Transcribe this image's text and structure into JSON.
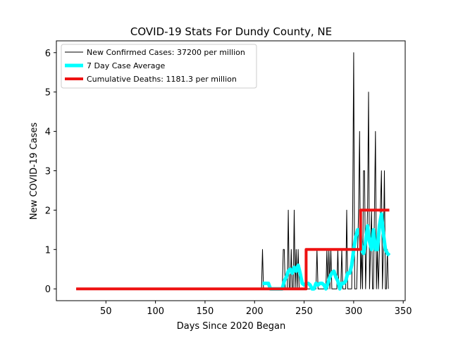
{
  "chart_data": {
    "type": "line",
    "title": "COVID-19 Stats For Dundy County, NE",
    "xlabel": "Days Since 2020 Began",
    "ylabel": "New COVID-19 Cases",
    "xlim": [
      0,
      352
    ],
    "ylim": [
      -0.3,
      6.3
    ],
    "xticks": [
      50,
      100,
      150,
      200,
      250,
      300,
      350
    ],
    "yticks": [
      0,
      1,
      2,
      3,
      4,
      5,
      6
    ],
    "grid": false,
    "legend_position": "top-left",
    "series": [
      {
        "name": "New Confirmed Cases: 37200 per million",
        "color": "#000000",
        "x": [
          20,
          200,
          206,
          207,
          208,
          209,
          210,
          211,
          212,
          213,
          214,
          215,
          216,
          217,
          218,
          219,
          220,
          221,
          222,
          223,
          224,
          225,
          226,
          227,
          228,
          229,
          230,
          231,
          232,
          233,
          234,
          235,
          236,
          237,
          238,
          239,
          240,
          241,
          242,
          243,
          244,
          245,
          246,
          247,
          248,
          249,
          250,
          251,
          252,
          253,
          254,
          255,
          256,
          257,
          258,
          259,
          260,
          261,
          262,
          263,
          264,
          265,
          266,
          267,
          268,
          269,
          270,
          271,
          272,
          273,
          274,
          275,
          276,
          277,
          278,
          279,
          280,
          281,
          282,
          283,
          284,
          285,
          286,
          287,
          288,
          289,
          290,
          291,
          292,
          293,
          294,
          295,
          296,
          297,
          298,
          299,
          300,
          301,
          302,
          303,
          304,
          305,
          306,
          307,
          308,
          309,
          310,
          311,
          312,
          313,
          314,
          315,
          316,
          317,
          318,
          319,
          320,
          321,
          322,
          323,
          324,
          325,
          326,
          327,
          328,
          329,
          330,
          331,
          332,
          333,
          334,
          335
        ],
        "y": [
          0,
          0,
          0,
          0,
          1,
          0,
          0,
          0,
          0,
          0,
          0,
          0,
          0,
          0,
          0,
          0,
          0,
          0,
          0,
          0,
          0,
          0,
          0,
          0,
          0,
          1,
          1,
          0,
          0,
          0,
          2,
          0,
          0,
          1,
          0,
          0,
          2,
          0,
          1,
          0,
          1,
          0,
          0,
          0,
          0,
          0,
          0,
          0,
          0,
          0,
          0,
          0,
          0,
          0,
          0,
          0,
          0,
          0,
          0,
          1,
          0,
          0,
          0,
          0,
          0,
          0,
          0,
          0,
          0,
          1,
          0,
          1,
          0,
          1,
          0,
          0,
          0,
          0,
          0,
          0,
          1,
          0,
          0,
          0,
          1,
          0,
          0,
          0,
          0,
          2,
          0,
          0,
          0,
          0,
          0,
          2,
          6,
          0,
          0,
          0,
          1,
          2,
          4,
          0,
          1,
          0,
          3,
          3,
          0,
          1,
          2,
          5,
          0,
          1,
          2,
          0,
          0,
          2,
          4,
          0,
          1,
          0,
          1,
          2,
          3,
          0,
          1,
          3,
          0,
          0,
          1,
          0
        ],
        "line_width": 1
      },
      {
        "name": "7 Day Case Average",
        "color": "#00ffff",
        "x": [
          208,
          210,
          212,
          214,
          216,
          218,
          220,
          222,
          224,
          226,
          228,
          230,
          232,
          234,
          236,
          238,
          240,
          242,
          244,
          246,
          248,
          250,
          252,
          254,
          256,
          258,
          260,
          262,
          264,
          266,
          268,
          270,
          272,
          274,
          276,
          278,
          280,
          282,
          284,
          286,
          288,
          290,
          292,
          294,
          296,
          298,
          300,
          302,
          304,
          306,
          308,
          310,
          312,
          314,
          316,
          318,
          320,
          322,
          324,
          326,
          328,
          330,
          332,
          334,
          336
        ],
        "y": [
          0.14,
          0.14,
          0.14,
          0.14,
          0,
          0,
          0,
          0,
          0,
          0,
          0,
          0.2,
          0.3,
          0.45,
          0.5,
          0.4,
          0.55,
          0.45,
          0.6,
          0.4,
          0.14,
          0.1,
          0.14,
          0.14,
          0.1,
          0,
          0,
          0.14,
          0.1,
          0.14,
          0.14,
          0.1,
          0,
          0.14,
          0.3,
          0.4,
          0.45,
          0.3,
          0.2,
          0,
          0.14,
          0.14,
          0.2,
          0.4,
          0.4,
          0.6,
          1.0,
          1.3,
          1.5,
          1.5,
          1.0,
          0.9,
          1.2,
          1.6,
          1.2,
          1.0,
          1.5,
          1.0,
          1.0,
          1.6,
          1.9,
          1.4,
          1.0,
          0.9,
          0.85
        ],
        "line_width": 5
      },
      {
        "name": "Cumulative Deaths: 1181.3 per million",
        "color": "#ee1111",
        "x": [
          20,
          252,
          252,
          307,
          307,
          336
        ],
        "y": [
          0,
          0,
          1,
          1,
          2,
          2
        ],
        "line_width": 4
      }
    ]
  }
}
